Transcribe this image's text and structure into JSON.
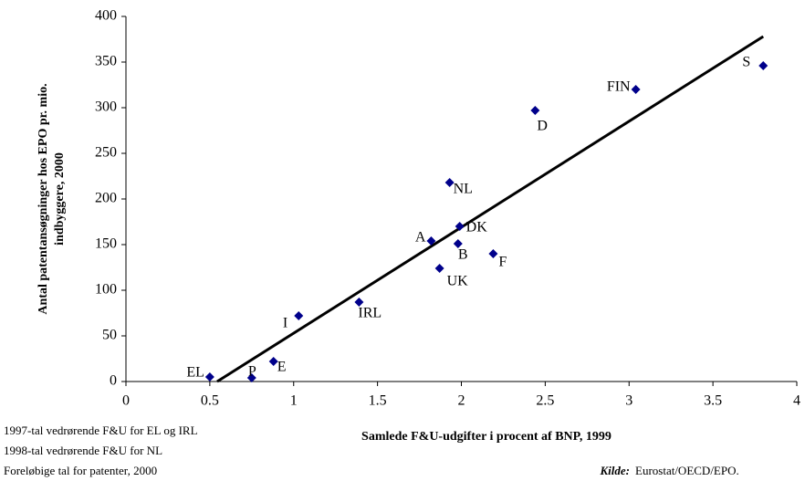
{
  "chart_data": {
    "type": "scatter",
    "y_label": [
      "Antal patentansøgninger hos EPO pr. mio.",
      "indbyggere, 2000"
    ],
    "x_label": "Samlede F&U-udgifter i procent af BNP, 1999",
    "notes": [
      "1997-tal vedrørende F&U for EL og IRL",
      "1998-tal vedrørende F&U for  NL",
      "Foreløbige tal for patenter, 2000"
    ],
    "source_label": "Kilde:",
    "source": "Eurostat/OECD/EPO.",
    "labels": [
      "EL",
      "P",
      "E",
      "I",
      "IRL",
      "A",
      "UK",
      "NL",
      "B",
      "DK",
      "F",
      "D",
      "FIN",
      "S"
    ],
    "x": [
      0.5,
      0.75,
      0.88,
      1.03,
      1.39,
      1.82,
      1.87,
      1.93,
      1.98,
      1.99,
      2.19,
      2.44,
      3.04,
      3.8
    ],
    "values": [
      5,
      4,
      22,
      72,
      87,
      154,
      124,
      218,
      151,
      170,
      140,
      297,
      320,
      346
    ],
    "color": "#00008b",
    "trendline": {
      "x": [
        0.544,
        3.8
      ],
      "y": [
        0,
        378
      ],
      "color": "#000000"
    },
    "xlim": [
      0,
      4
    ],
    "xticks": [
      0,
      0.5,
      1,
      1.5,
      2,
      2.5,
      3,
      3.5,
      4
    ],
    "ylim": [
      0,
      400
    ],
    "yticks": [
      0,
      50,
      100,
      150,
      200,
      250,
      300,
      350,
      400
    ],
    "grid": false
  }
}
